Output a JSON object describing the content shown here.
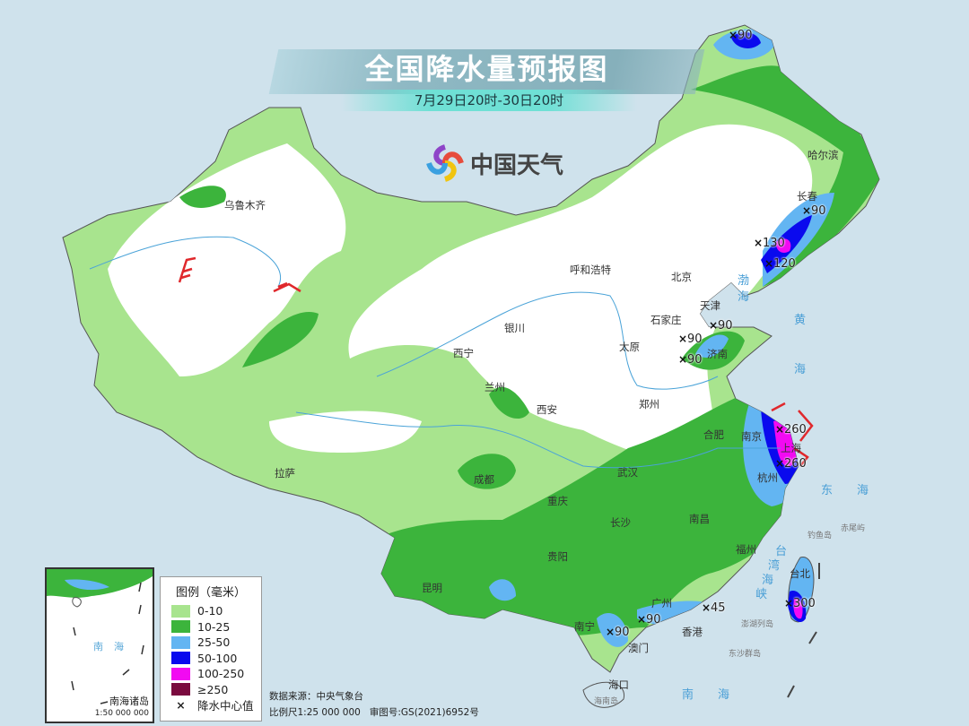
{
  "header": {
    "title": "全国降水量预报图",
    "subtitle": "7月29日20时-30日20时",
    "brand": "中国天气"
  },
  "legend": {
    "title": "图例（毫米）",
    "items": [
      {
        "label": "0-10",
        "color": "#a8e48e"
      },
      {
        "label": "10-25",
        "color": "#3cb43c"
      },
      {
        "label": "25-50",
        "color": "#63b5f2"
      },
      {
        "label": "50-100",
        "color": "#0a0aee"
      },
      {
        "label": "100-250",
        "color": "#f20af2"
      },
      {
        "label": "≥250",
        "color": "#7a0a3e"
      }
    ],
    "center_marker": "降水中心值",
    "center_marker_icon": "x-mark-icon"
  },
  "footer": {
    "source": "数据来源：中央气象台",
    "scale": "比例尺1:25 000 000",
    "approval": "审图号:GS(2021)6952号"
  },
  "inset": {
    "name": "南海诸岛",
    "scale": "1:50 000 000",
    "sea": "南海"
  },
  "cities": [
    "乌鲁木齐",
    "哈尔滨",
    "长春",
    "呼和浩特",
    "北京",
    "天津",
    "石家庄",
    "太原",
    "济南",
    "银川",
    "西宁",
    "兰州",
    "西安",
    "郑州",
    "合肥",
    "南京",
    "上海",
    "杭州",
    "武汉",
    "南昌",
    "长沙",
    "重庆",
    "成都",
    "贵阳",
    "昆明",
    "南宁",
    "广州",
    "福州",
    "台北",
    "香港",
    "澳门",
    "海口",
    "拉萨"
  ],
  "precip_centers": [
    "90",
    "90",
    "130",
    "120",
    "90",
    "90",
    "90",
    "260",
    "260",
    "45",
    "90",
    "90",
    "300"
  ],
  "seas": [
    "渤",
    "海",
    "黄",
    "海",
    "东",
    "海",
    "南",
    "海",
    "台",
    "湾",
    "海",
    "峡"
  ],
  "islands": [
    "钓鱼岛",
    "赤尾屿",
    "澎湖列岛",
    "东沙群岛",
    "海南岛"
  ],
  "colors": {
    "background": "#cfe2ec",
    "no_rain": "#ffffff"
  }
}
